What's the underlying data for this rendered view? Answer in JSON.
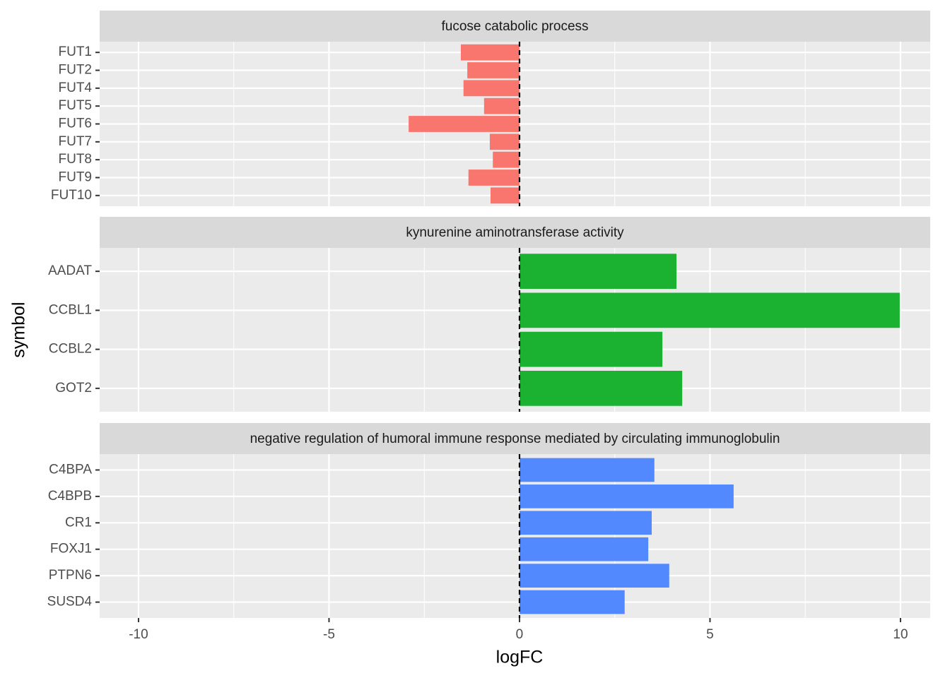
{
  "chart_data": {
    "type": "bar",
    "orientation": "horizontal",
    "xlabel": "logFC",
    "ylabel": "symbol",
    "xlim": [
      -11.02,
      10.78
    ],
    "xticks": [
      -10,
      -5,
      0,
      5,
      10
    ],
    "grid": true,
    "vline": 0,
    "facets": [
      {
        "title": "fucose catabolic process",
        "color": "#f8766d",
        "categories": [
          "FUT1",
          "FUT2",
          "FUT4",
          "FUT5",
          "FUT6",
          "FUT7",
          "FUT8",
          "FUT9",
          "FUT10"
        ],
        "values": [
          -1.54,
          -1.37,
          -1.47,
          -0.93,
          -2.91,
          -0.78,
          -0.7,
          -1.34,
          -0.76
        ]
      },
      {
        "title": "kynurenine aminotransferase activity",
        "color": "#1bb231",
        "categories": [
          "AADAT",
          "CCBL1",
          "CCBL2",
          "GOT2"
        ],
        "values": [
          4.12,
          9.98,
          3.75,
          4.27
        ]
      },
      {
        "title": "negative regulation of humoral immune response mediated by circulating immunoglobulin",
        "color": "#5289ff",
        "categories": [
          "C4BPA",
          "C4BPB",
          "CR1",
          "FOXJ1",
          "PTPN6",
          "SUSD4"
        ],
        "values": [
          3.54,
          5.62,
          3.47,
          3.38,
          3.93,
          2.76
        ]
      }
    ]
  }
}
